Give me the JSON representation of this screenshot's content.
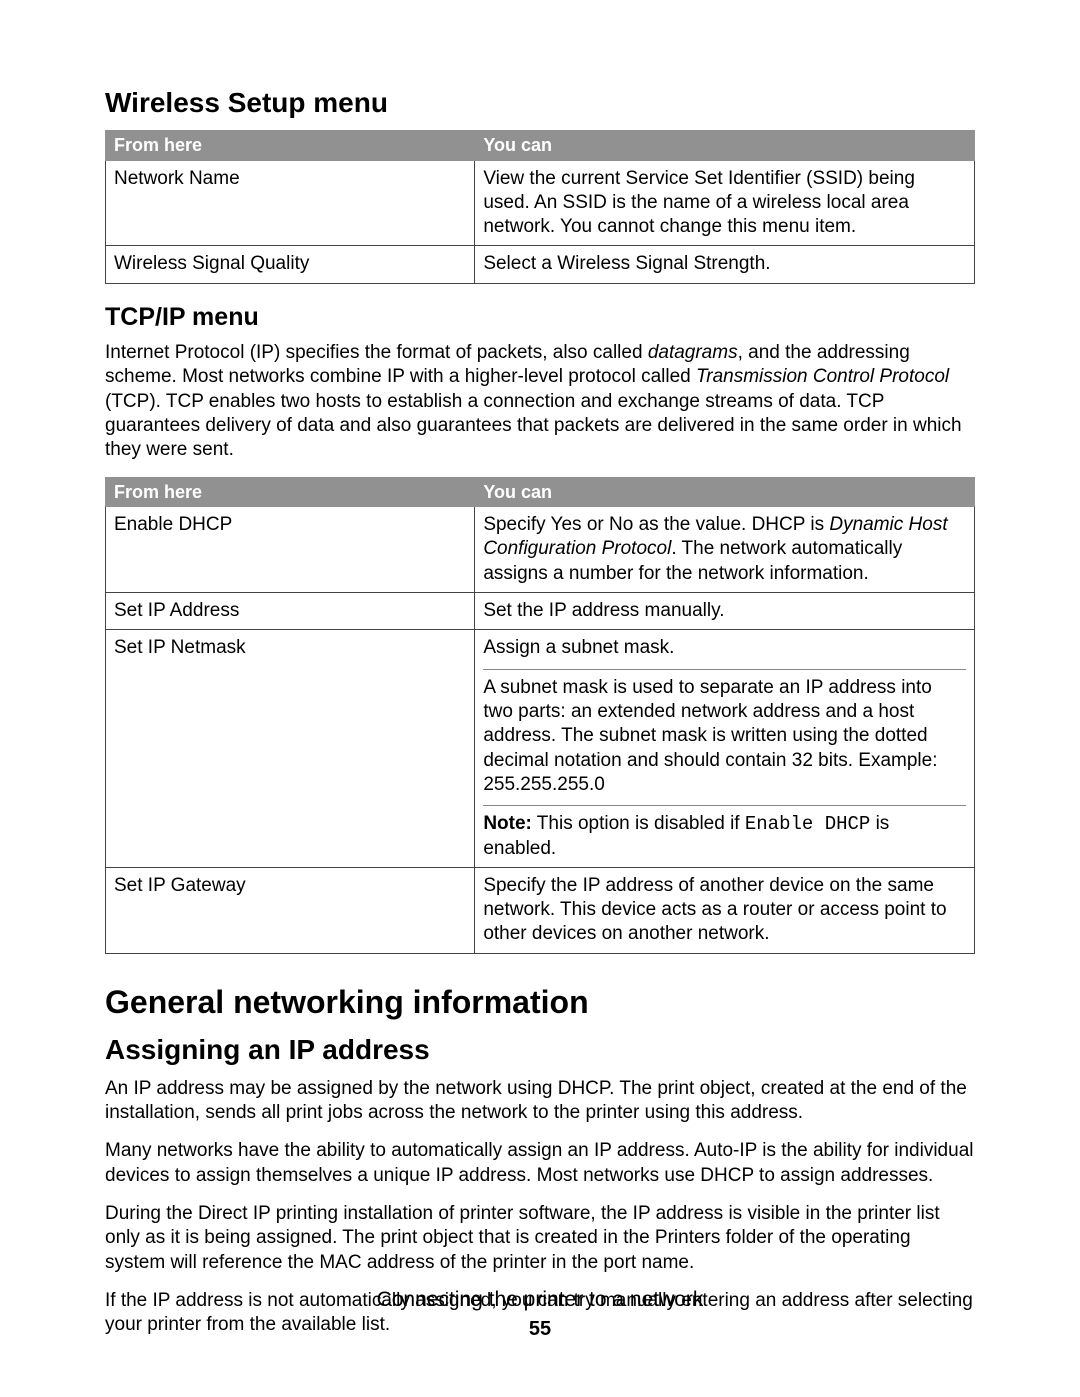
{
  "section1": {
    "heading": "Wireless Setup menu",
    "table": {
      "header_left": "From here",
      "header_right": "You can",
      "rows": [
        {
          "left": "Network Name",
          "right": "View the current Service Set Identifier (SSID) being used. An SSID is the name of a wireless local area network. You cannot change this menu item."
        },
        {
          "left": "Wireless Signal Quality",
          "right": "Select a Wireless Signal Strength."
        }
      ]
    }
  },
  "section2": {
    "heading": "TCP/IP menu",
    "intro_pre": "Internet Protocol (IP) specifies the format of packets, also called ",
    "intro_em1": "datagrams",
    "intro_mid": ", and the addressing scheme. Most networks combine IP with a higher-level protocol called ",
    "intro_em2": "Transmission Control Protocol",
    "intro_post": " (TCP). TCP enables two hosts to establish a connection and exchange streams of data. TCP guarantees delivery of data and also guarantees that packets are delivered in the same order in which they were sent.",
    "table": {
      "header_left": "From here",
      "header_right": "You can",
      "rows": {
        "r0_left": "Enable DHCP",
        "r0_right_pre": "Specify Yes or No as the value. DHCP is ",
        "r0_right_em": "Dynamic Host Configuration Protocol",
        "r0_right_post": ". The network automatically assigns a number for the network information.",
        "r1_left": "Set IP Address",
        "r1_right": "Set the IP address manually.",
        "r2_left": "Set IP Netmask",
        "r2_b1": "Assign a subnet mask.",
        "r2_b2": "A subnet mask is used to separate an IP address into two parts: an extended network address and a host address. The subnet mask is written using the dotted decimal notation and should contain 32 bits. Example: 255.255.255.0",
        "r2_b3_strong": "Note:",
        "r2_b3_text1": " This option is disabled if ",
        "r2_b3_code": "Enable DHCP",
        "r2_b3_text2": " is enabled.",
        "r3_left": "Set IP Gateway",
        "r3_right": "Specify the IP address of another device on the same network. This device acts as a router or access point to other devices on another network."
      }
    }
  },
  "section3": {
    "heading": "General networking information",
    "subheading": "Assigning an IP address",
    "p1": "An IP address may be assigned by the network using DHCP. The print object, created at the end of the installation, sends all print jobs across the network to the printer using this address.",
    "p2": "Many networks have the ability to automatically assign an IP address. Auto-IP is the ability for individual devices to assign themselves a unique IP address. Most networks use DHCP to assign addresses.",
    "p3": "During the Direct IP printing installation of printer software, the IP address is visible in the printer list only as it is being assigned. The print object that is created in the Printers folder of the operating system will reference the MAC address of the printer in the port name.",
    "p4": "If the IP address is not automatically assigned, you can try manually entering an address after selecting your printer from the available list."
  },
  "footer": {
    "title": "Connecting the printer to a network",
    "page": "55"
  }
}
